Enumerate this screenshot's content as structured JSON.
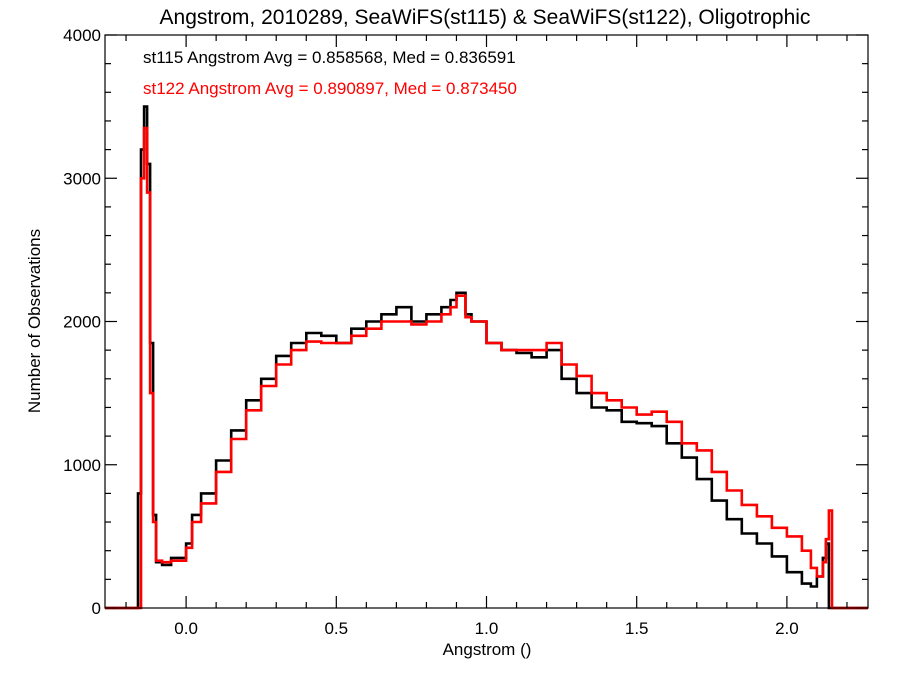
{
  "chart_data": {
    "type": "line",
    "title": "Angstrom, 2010289, SeaWiFS(st115) & SeaWiFS(st122), Oligotrophic",
    "xlabel": "Angstrom ()",
    "ylabel": "Number of Observations",
    "xlim": [
      -0.27,
      2.27
    ],
    "ylim": [
      0,
      4000
    ],
    "x_ticks": [
      0.0,
      0.5,
      1.0,
      1.5,
      2.0
    ],
    "x_tick_labels": [
      "0.0",
      "0.5",
      "1.0",
      "1.5",
      "2.0"
    ],
    "y_ticks": [
      0,
      1000,
      2000,
      3000,
      4000
    ],
    "y_tick_labels": [
      "0",
      "1000",
      "2000",
      "3000",
      "4000"
    ],
    "grid": false,
    "step": true,
    "annotations": [
      {
        "text": "st115 Angstrom Avg = 0.858568, Med = 0.836591",
        "color": "#000000"
      },
      {
        "text": "st122 Angstrom Avg = 0.890897, Med = 0.873450",
        "color": "#ff0000"
      }
    ],
    "series": [
      {
        "color": "#000000",
        "x": [
          -0.27,
          -0.17,
          -0.16,
          -0.15,
          -0.14,
          -0.13,
          -0.12,
          -0.11,
          -0.1,
          -0.08,
          -0.05,
          0.0,
          0.02,
          0.05,
          0.1,
          0.15,
          0.2,
          0.25,
          0.3,
          0.35,
          0.4,
          0.45,
          0.5,
          0.55,
          0.6,
          0.65,
          0.7,
          0.75,
          0.8,
          0.85,
          0.88,
          0.9,
          0.93,
          0.95,
          1.0,
          1.05,
          1.1,
          1.15,
          1.2,
          1.25,
          1.3,
          1.35,
          1.4,
          1.45,
          1.5,
          1.55,
          1.6,
          1.65,
          1.7,
          1.75,
          1.8,
          1.85,
          1.9,
          1.95,
          2.0,
          2.05,
          2.08,
          2.1,
          2.12,
          2.13,
          2.14,
          2.15,
          2.27
        ],
        "y": [
          0,
          0,
          800,
          3200,
          3500,
          3100,
          1850,
          650,
          320,
          300,
          350,
          450,
          650,
          800,
          1030,
          1240,
          1450,
          1600,
          1760,
          1850,
          1920,
          1900,
          1850,
          1950,
          2000,
          2050,
          2100,
          2000,
          2050,
          2100,
          2150,
          2200,
          2050,
          2000,
          1850,
          1800,
          1780,
          1750,
          1800,
          1600,
          1500,
          1400,
          1380,
          1300,
          1290,
          1270,
          1150,
          1050,
          900,
          750,
          620,
          520,
          450,
          360,
          250,
          170,
          150,
          220,
          350,
          450,
          0,
          0,
          0
        ],
        "name": ""
      },
      {
        "color": "#ff0000",
        "x": [
          -0.27,
          -0.16,
          -0.15,
          -0.14,
          -0.13,
          -0.12,
          -0.11,
          -0.1,
          -0.08,
          -0.05,
          0.0,
          0.02,
          0.05,
          0.1,
          0.15,
          0.2,
          0.25,
          0.3,
          0.35,
          0.4,
          0.45,
          0.5,
          0.55,
          0.6,
          0.65,
          0.7,
          0.75,
          0.8,
          0.85,
          0.88,
          0.9,
          0.93,
          0.95,
          1.0,
          1.05,
          1.1,
          1.15,
          1.2,
          1.25,
          1.3,
          1.35,
          1.4,
          1.45,
          1.5,
          1.55,
          1.6,
          1.65,
          1.7,
          1.75,
          1.8,
          1.85,
          1.9,
          1.95,
          2.0,
          2.05,
          2.08,
          2.1,
          2.12,
          2.13,
          2.14,
          2.15,
          2.27
        ],
        "y": [
          0,
          0,
          3000,
          3350,
          2900,
          1500,
          600,
          330,
          320,
          330,
          420,
          600,
          730,
          950,
          1180,
          1380,
          1550,
          1700,
          1800,
          1860,
          1850,
          1850,
          1900,
          1950,
          2000,
          2000,
          1980,
          2000,
          2050,
          2100,
          2180,
          2030,
          2000,
          1850,
          1800,
          1800,
          1800,
          1850,
          1700,
          1620,
          1500,
          1450,
          1400,
          1350,
          1370,
          1300,
          1150,
          1100,
          950,
          820,
          720,
          640,
          560,
          500,
          400,
          280,
          220,
          320,
          480,
          680,
          0,
          0
        ]
      }
    ]
  }
}
